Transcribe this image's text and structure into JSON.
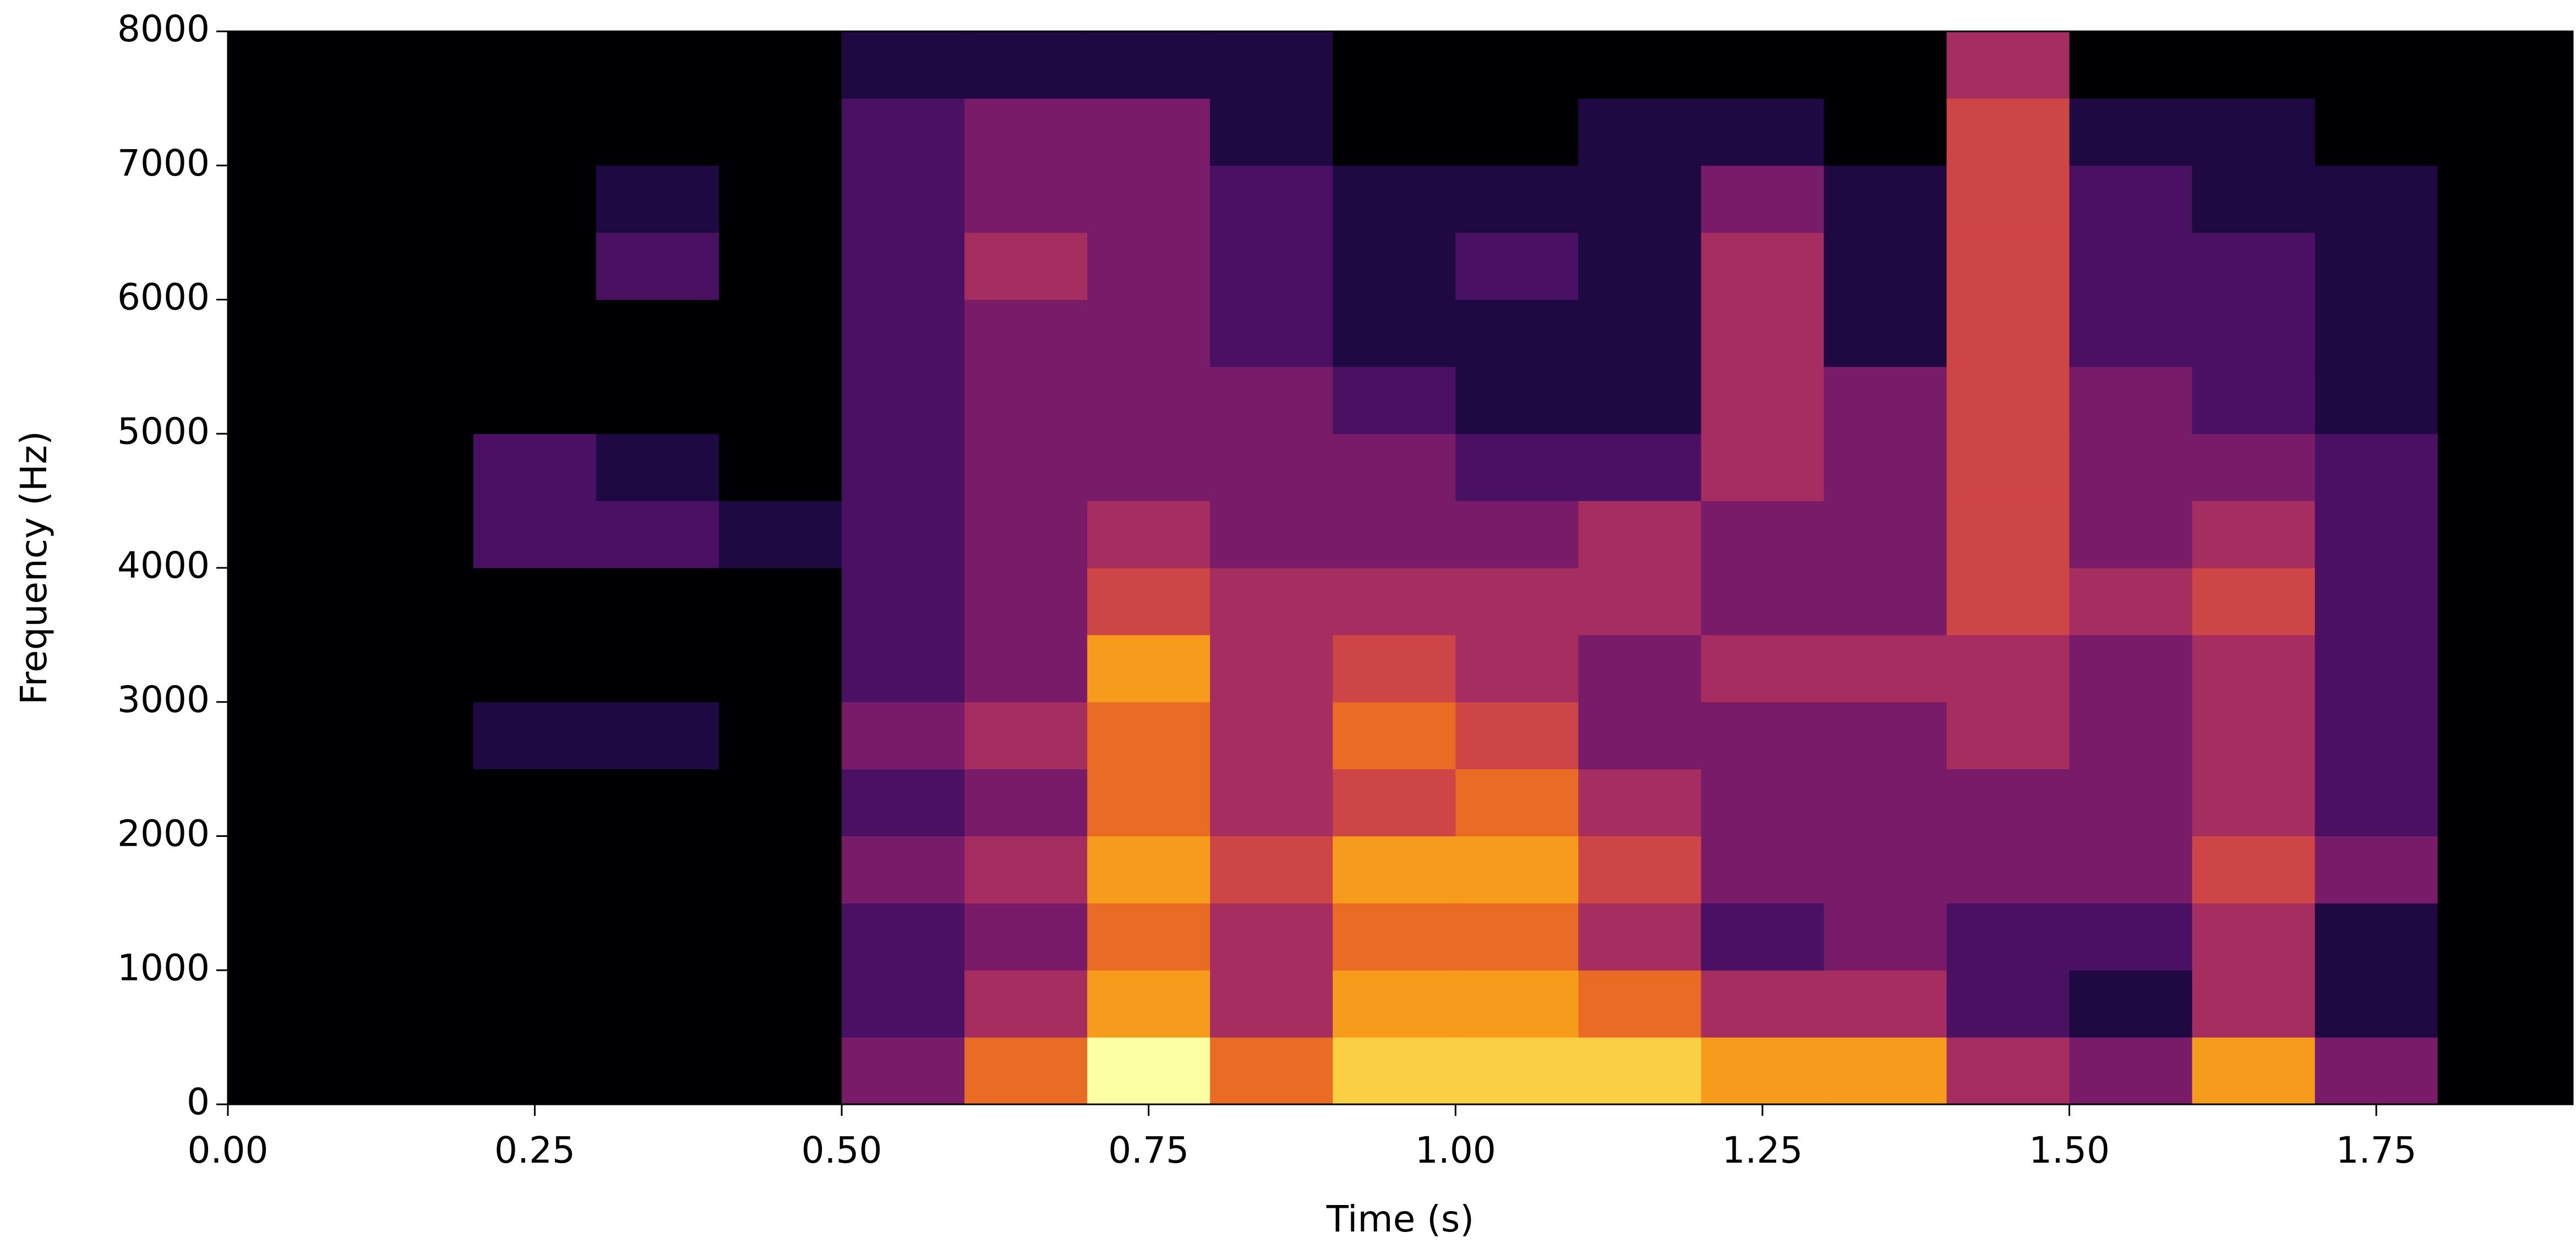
{
  "chart_data": {
    "type": "heatmap",
    "colormap": "inferno",
    "xlabel": "Time (s)",
    "ylabel": "Frequency (Hz)",
    "xlim": [
      0,
      1.91
    ],
    "ylim": [
      0,
      8000
    ],
    "xticks": [
      {
        "value": 0,
        "label": "0.00"
      },
      0.25,
      {
        "value": 0.5,
        "label": "0.50"
      },
      0.75,
      {
        "value": 1,
        "label": "1.00"
      },
      1.25,
      {
        "value": 1.5,
        "label": "1.50"
      },
      1.75
    ],
    "yticks": [
      0,
      1000,
      2000,
      3000,
      4000,
      5000,
      6000,
      7000,
      8000
    ],
    "xbins": [
      0,
      0.1,
      0.2,
      0.3,
      0.4,
      0.5,
      0.6,
      0.7,
      0.8,
      0.9,
      1.0,
      1.1,
      1.2,
      1.3,
      1.4,
      1.5,
      1.6,
      1.7,
      1.8,
      1.9,
      1.91
    ],
    "ybins": [
      0,
      500,
      1000,
      1500,
      2000,
      2500,
      3000,
      3500,
      4000,
      4500,
      5000,
      5500,
      6000,
      6500,
      7000,
      7500,
      8000
    ],
    "values": [
      [
        0,
        0,
        0,
        0,
        0,
        0,
        0,
        0,
        0,
        0,
        0,
        0,
        0,
        0,
        0,
        0
      ],
      [
        0,
        0,
        0,
        0,
        0,
        0,
        0,
        0,
        0,
        0,
        0,
        0,
        0,
        0,
        0,
        0
      ],
      [
        0,
        0,
        0,
        0,
        0,
        1,
        0,
        0,
        2,
        2,
        0,
        0,
        0,
        0,
        0,
        0
      ],
      [
        0,
        0,
        0,
        0,
        0,
        1,
        0,
        0,
        2,
        1,
        0,
        0,
        2,
        1,
        0,
        0
      ],
      [
        0,
        0,
        0,
        0,
        0,
        0,
        0,
        0,
        1,
        0,
        0,
        0,
        0,
        0,
        0,
        0
      ],
      [
        3,
        2,
        2,
        3,
        2,
        3,
        2,
        2,
        2,
        2,
        2,
        2,
        2,
        2,
        2,
        1
      ],
      [
        6,
        4,
        3,
        4,
        3,
        4,
        3,
        3,
        3,
        3,
        3,
        3,
        4,
        3,
        3,
        1
      ],
      [
        9,
        7,
        6,
        7,
        6,
        6,
        7,
        5,
        4,
        3,
        3,
        3,
        3,
        3,
        3,
        1
      ],
      [
        6,
        4,
        4,
        5,
        4,
        4,
        4,
        4,
        3,
        3,
        3,
        2,
        2,
        2,
        1,
        1
      ],
      [
        8,
        7,
        6,
        7,
        5,
        6,
        5,
        4,
        3,
        3,
        2,
        1,
        1,
        1,
        0,
        0
      ],
      [
        8,
        7,
        6,
        7,
        6,
        5,
        4,
        4,
        3,
        2,
        1,
        1,
        2,
        1,
        0,
        0
      ],
      [
        8,
        6,
        4,
        5,
        4,
        3,
        3,
        4,
        4,
        2,
        1,
        1,
        1,
        1,
        1,
        0
      ],
      [
        7,
        4,
        2,
        3,
        3,
        3,
        4,
        3,
        3,
        4,
        4,
        4,
        4,
        3,
        1,
        0
      ],
      [
        7,
        4,
        3,
        3,
        3,
        3,
        4,
        3,
        3,
        3,
        3,
        1,
        1,
        1,
        0,
        0
      ],
      [
        4,
        2,
        2,
        3,
        3,
        4,
        4,
        5,
        5,
        5,
        5,
        5,
        5,
        5,
        5,
        4
      ],
      [
        3,
        1,
        2,
        3,
        3,
        3,
        3,
        4,
        3,
        3,
        3,
        2,
        2,
        2,
        1,
        0
      ],
      [
        7,
        4,
        4,
        5,
        4,
        4,
        4,
        5,
        4,
        3,
        2,
        2,
        2,
        1,
        1,
        0
      ],
      [
        3,
        1,
        1,
        3,
        2,
        2,
        2,
        2,
        2,
        2,
        1,
        1,
        1,
        1,
        0,
        0
      ],
      [
        0,
        0,
        0,
        0,
        0,
        0,
        0,
        0,
        0,
        0,
        0,
        0,
        0,
        0,
        0,
        0
      ],
      [
        0,
        0,
        0,
        0,
        0,
        0,
        0,
        0,
        0,
        0,
        0,
        0,
        0,
        0,
        0,
        0
      ]
    ]
  }
}
